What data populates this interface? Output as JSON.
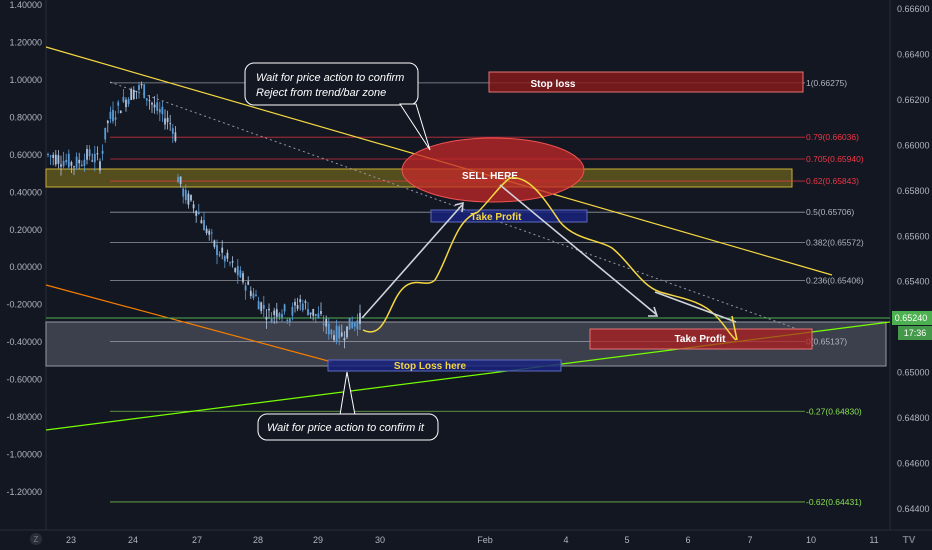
{
  "chart_data": {
    "type": "candlestick",
    "title": "",
    "left_axis": {
      "min": -1.3,
      "max": 1.4,
      "ticks": [
        1.4,
        1.2,
        1.0,
        0.8,
        0.6,
        0.4,
        0.2,
        0.0,
        -0.2,
        -0.4,
        -0.6,
        -0.8,
        -1.0,
        -1.2
      ],
      "tick_labels": [
        "1.40000",
        "1.20000",
        "1.00000",
        "0.80000",
        "0.60000",
        "0.40000",
        "0.20000",
        "0.00000",
        "-0.20000",
        "-0.40000",
        "-0.60000",
        "-0.80000",
        "-1.00000",
        "-1.20000"
      ]
    },
    "right_axis": {
      "min": 0.6437,
      "max": 0.666,
      "ticks": [
        0.666,
        0.6658,
        0.6656,
        0.6654,
        0.6652,
        0.665,
        0.6648,
        0.6646,
        0.6644,
        0.6642,
        0.664,
        0.6638,
        0.6636,
        0.6634,
        0.6632,
        0.663,
        0.6628,
        0.6626,
        0.6624,
        0.6622,
        0.662,
        0.6618,
        0.6616,
        0.6614,
        0.6612,
        0.661,
        0.6608,
        0.6606,
        0.6604,
        0.6602,
        0.66,
        0.6598,
        0.6596,
        0.6594,
        0.6592,
        0.659,
        0.6588,
        0.6586,
        0.6584,
        0.6582,
        0.658,
        0.6578,
        0.6576,
        0.6574,
        0.6572,
        0.657,
        0.6568,
        0.6566,
        0.6564,
        0.6562,
        0.656,
        0.6558,
        0.6556,
        0.6554,
        0.6552,
        0.655,
        0.6548,
        0.6546,
        0.6544,
        0.6542,
        0.654,
        0.6538,
        0.6536,
        0.6534,
        0.6532,
        0.653,
        0.6528,
        0.6526,
        0.6524,
        0.6522,
        0.652,
        0.6518,
        0.6516,
        0.6514,
        0.6512,
        0.651,
        0.6508,
        0.6506,
        0.6504,
        0.6502,
        0.65,
        0.6498,
        0.6496,
        0.6494,
        0.6492,
        0.649,
        0.6488,
        0.6486,
        0.6484,
        0.6482,
        0.648,
        0.6478,
        0.6476,
        0.6474,
        0.6472,
        0.647,
        0.6468,
        0.6466,
        0.6464,
        0.6462,
        0.646,
        0.6458,
        0.6456,
        0.6454,
        0.6452,
        0.645,
        0.6448,
        0.6446,
        0.6444,
        0.6442,
        0.644
      ],
      "tick_labels": [
        "0.66600",
        "0.66400",
        "0.66200",
        "0.66000",
        "0.65800",
        "0.65600",
        "0.65400",
        "0.65000",
        "0.64800",
        "0.64600",
        "0.64400"
      ],
      "labeled_ticks": [
        0.666,
        0.664,
        0.662,
        0.66,
        0.658,
        0.656,
        0.654,
        0.65,
        0.648,
        0.646,
        0.644
      ],
      "current_price": "0.65240",
      "countdown": "17:36"
    },
    "x_axis": {
      "labels": [
        "23",
        "24",
        "27",
        "28",
        "29",
        "30",
        "Feb",
        "4",
        "5",
        "6",
        "7",
        "10",
        "11"
      ],
      "label_index": [
        0,
        1,
        2,
        3,
        4,
        5,
        6,
        7,
        8,
        9,
        10,
        11,
        12
      ]
    },
    "fib_levels": [
      {
        "label": "1(0.66275)",
        "price": 0.66275,
        "color": "#b2b5be"
      },
      {
        "label": "0.79(0.66036)",
        "price": 0.66036,
        "color": "#f23645"
      },
      {
        "label": "0.705(0.65940)",
        "price": 0.6594,
        "color": "#f23645"
      },
      {
        "label": "0.62(0.65843)",
        "price": 0.65843,
        "color": "#f23645"
      },
      {
        "label": "0.5(0.65706)",
        "price": 0.65706,
        "color": "#b2b5be"
      },
      {
        "label": "0.382(0.65572)",
        "price": 0.65572,
        "color": "#b2b5be"
      },
      {
        "label": "0.236(0.65406)",
        "price": 0.65406,
        "color": "#b2b5be"
      },
      {
        "label": "0(0.65137)",
        "price": 0.65137,
        "color": "#b2b5be"
      },
      {
        "label": "-0.27(0.64830)",
        "price": 0.6483,
        "color": "#89e051"
      },
      {
        "label": "-0.62(0.64431)",
        "price": 0.64431,
        "color": "#89e051"
      }
    ],
    "annotations": {
      "wait_top_line1": "Wait for price action to confirm",
      "wait_top_line2": "Reject from trend/bar zone",
      "wait_bottom": "Wait for price action to confirm it",
      "sell_here": "SELL HERE",
      "take_profit_1": "Take Profit",
      "take_profit_2": "Take Profit",
      "stop_loss_top": "Stop loss",
      "stop_loss_bottom": "Stop Loss here"
    },
    "colors": {
      "background": "#131722",
      "candle_up": "#5b9bd5",
      "candle_down": "#b0c4de",
      "yellow_trend": "#f5d742",
      "orange_trend": "#f57c00",
      "green_trend": "#76ff03",
      "price_path": "#f5d742",
      "current_price_badge": "#4caf50"
    }
  },
  "ui": {
    "tv_logo_left": "Z",
    "tv_logo_right": "TV"
  }
}
